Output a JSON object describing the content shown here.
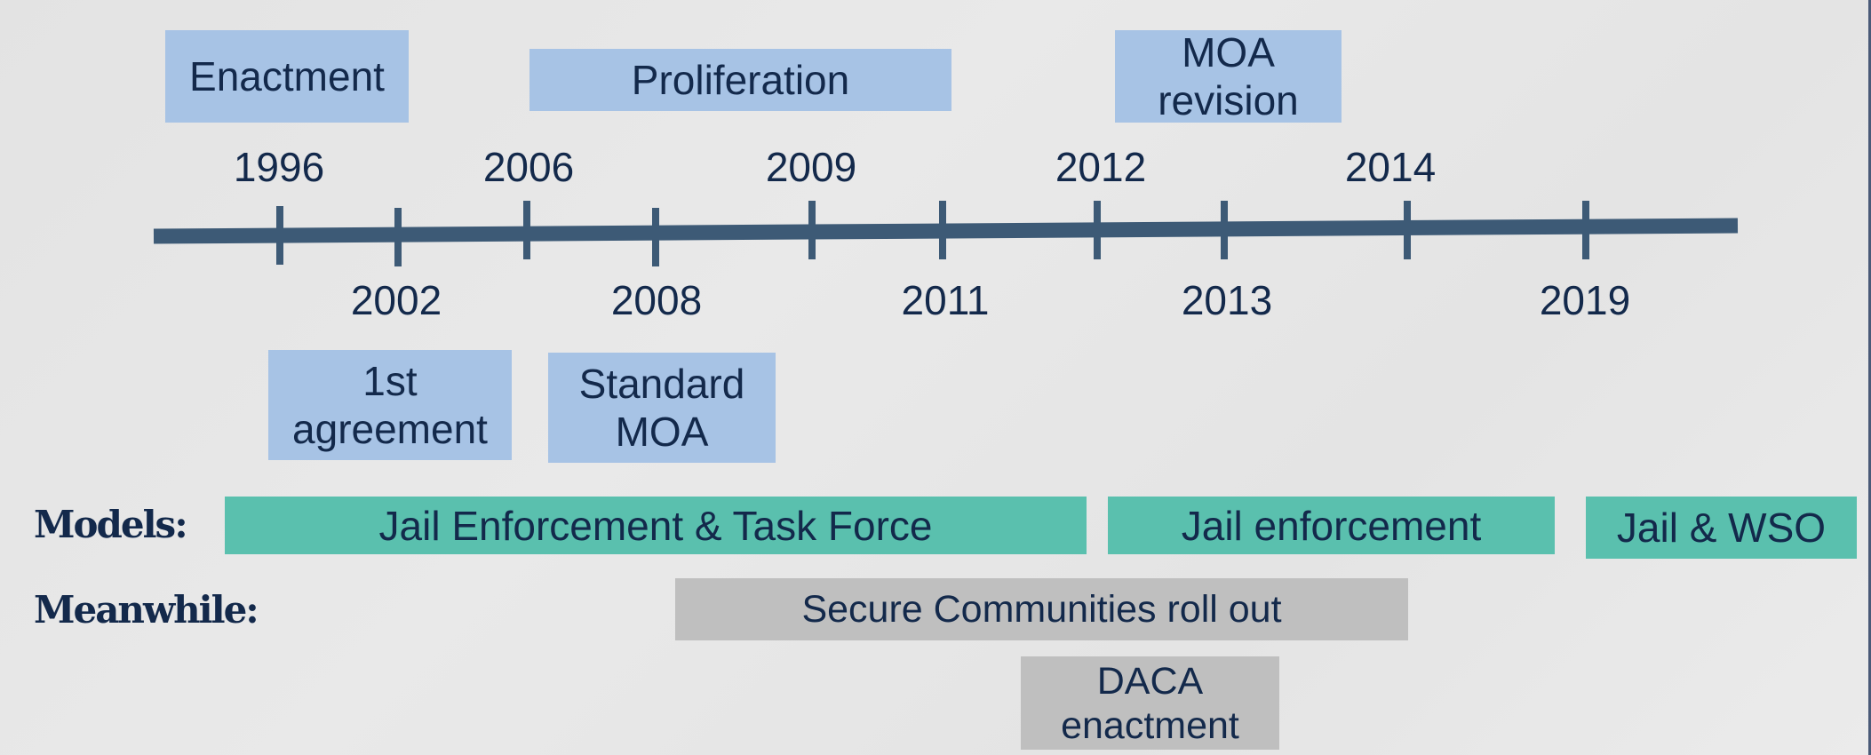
{
  "timeline": {
    "years_top": [
      "1996",
      "2006",
      "2009",
      "2012",
      "2014"
    ],
    "years_bottom": [
      "2002",
      "2008",
      "2011",
      "2013",
      "2019"
    ],
    "line_color": "#3d5a76"
  },
  "milestones_top": {
    "enactment": "Enactment",
    "proliferation": "Proliferation",
    "moa_revision": "MOA\nrevision"
  },
  "milestones_bottom": {
    "first_agreement": "1st\nagreement",
    "standard_moa": "Standard\nMOA"
  },
  "models": {
    "label": "Models:",
    "items": [
      "Jail Enforcement & Task Force",
      "Jail enforcement",
      "Jail & WSO"
    ],
    "color": "#5ac0ae"
  },
  "meanwhile": {
    "label": "Meanwhile:",
    "items": [
      "Secure Communities roll out",
      "DACA\nenactment"
    ],
    "color": "#bfbfbf"
  },
  "colors": {
    "milestone_box": "#a7c3e5",
    "text": "#13294b"
  }
}
